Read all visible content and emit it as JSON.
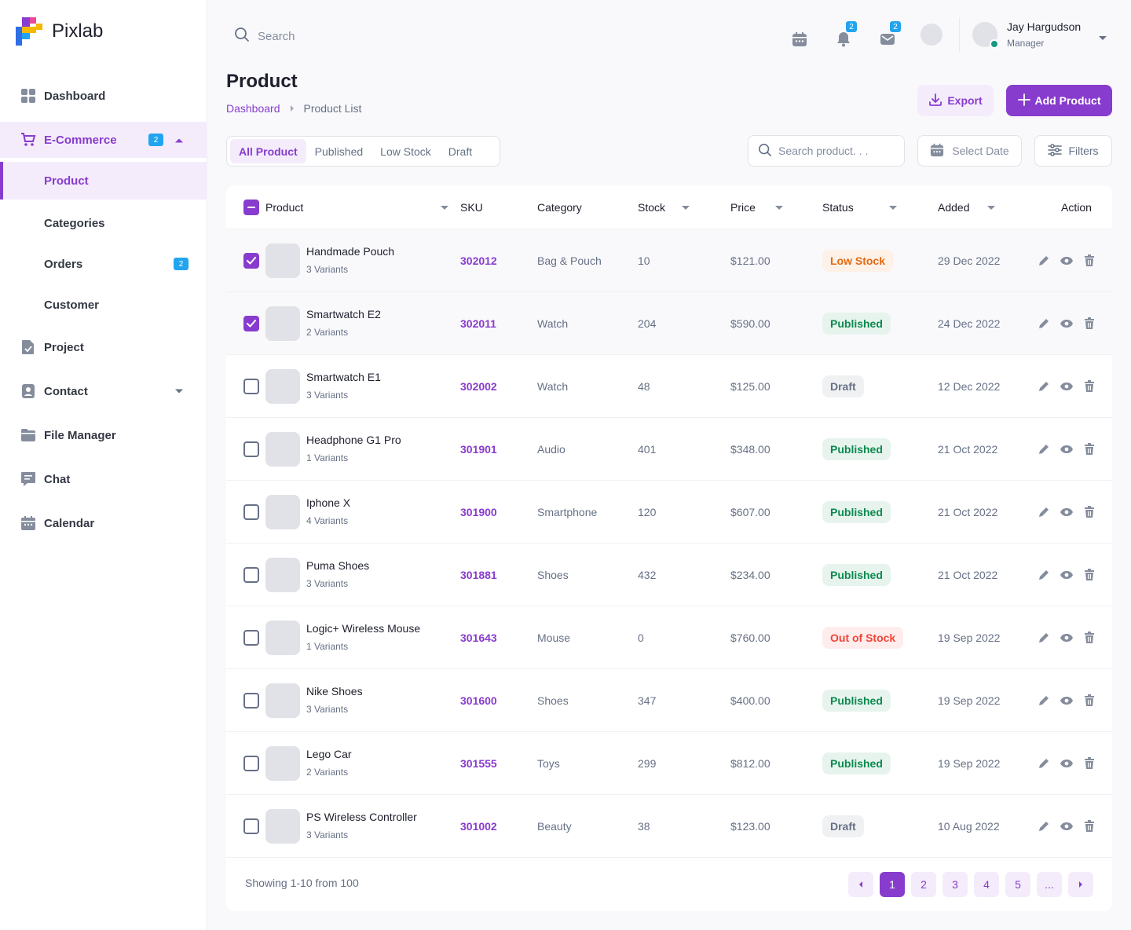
{
  "brand": {
    "name": "Pixlab"
  },
  "sidebar": {
    "items": [
      {
        "label": "Dashboard"
      },
      {
        "label": "E-Commerce",
        "badge": "2"
      },
      {
        "label": "Project"
      },
      {
        "label": "Contact"
      },
      {
        "label": "File Manager"
      },
      {
        "label": "Chat"
      },
      {
        "label": "Calendar"
      }
    ],
    "sub_items": [
      {
        "label": "Product"
      },
      {
        "label": "Categories"
      },
      {
        "label": "Orders",
        "badge": "2"
      },
      {
        "label": "Customer"
      }
    ]
  },
  "topbar": {
    "search_placeholder": "Search",
    "notification_badge": "2",
    "mail_badge": "2",
    "user": {
      "name": "Jay Hargudson",
      "role": "Manager"
    }
  },
  "page": {
    "title": "Product",
    "breadcrumb": [
      "Dashboard",
      "Product List"
    ],
    "export_label": "Export",
    "add_label": "Add Product"
  },
  "filters": {
    "tabs": [
      "All Product",
      "Published",
      "Low Stock",
      "Draft"
    ],
    "search_placeholder": "Search product. . .",
    "date_label": "Select Date",
    "filters_label": "Filters"
  },
  "table": {
    "headers": [
      "Product",
      "SKU",
      "Category",
      "Stock",
      "Price",
      "Status",
      "Added",
      "Action"
    ],
    "rows": [
      {
        "name": "Handmade Pouch",
        "variants": "3 Variants",
        "sku": "302012",
        "category": "Bag & Pouch",
        "stock": "10",
        "price": "$121.00",
        "status": "Low Stock",
        "added": "29 Dec 2022",
        "checked": true
      },
      {
        "name": "Smartwatch E2",
        "variants": "2 Variants",
        "sku": "302011",
        "category": "Watch",
        "stock": "204",
        "price": "$590.00",
        "status": "Published",
        "added": "24 Dec 2022",
        "checked": true
      },
      {
        "name": "Smartwatch E1",
        "variants": "3 Variants",
        "sku": "302002",
        "category": "Watch",
        "stock": "48",
        "price": "$125.00",
        "status": "Draft",
        "added": "12 Dec 2022",
        "checked": false
      },
      {
        "name": "Headphone G1 Pro",
        "variants": "1 Variants",
        "sku": "301901",
        "category": "Audio",
        "stock": "401",
        "price": "$348.00",
        "status": "Published",
        "added": "21 Oct 2022",
        "checked": false
      },
      {
        "name": "Iphone X",
        "variants": "4 Variants",
        "sku": "301900",
        "category": "Smartphone",
        "stock": "120",
        "price": "$607.00",
        "status": "Published",
        "added": "21 Oct 2022",
        "checked": false
      },
      {
        "name": "Puma Shoes",
        "variants": "3 Variants",
        "sku": "301881",
        "category": "Shoes",
        "stock": "432",
        "price": "$234.00",
        "status": "Published",
        "added": "21 Oct 2022",
        "checked": false
      },
      {
        "name": "Logic+ Wireless Mouse",
        "variants": "1 Variants",
        "sku": "301643",
        "category": "Mouse",
        "stock": "0",
        "price": "$760.00",
        "status": "Out of Stock",
        "added": "19 Sep 2022",
        "checked": false
      },
      {
        "name": "Nike Shoes",
        "variants": "3 Variants",
        "sku": "301600",
        "category": "Shoes",
        "stock": "347",
        "price": "$400.00",
        "status": "Published",
        "added": "19 Sep 2022",
        "checked": false
      },
      {
        "name": "Lego Car",
        "variants": "2 Variants",
        "sku": "301555",
        "category": "Toys",
        "stock": "299",
        "price": "$812.00",
        "status": "Published",
        "added": "19 Sep 2022",
        "checked": false
      },
      {
        "name": "PS Wireless Controller",
        "variants": "3 Variants",
        "sku": "301002",
        "category": "Beauty",
        "stock": "38",
        "price": "$123.00",
        "status": "Draft",
        "added": "10 Aug 2022",
        "checked": false
      }
    ]
  },
  "status_colors": {
    "Low Stock": {
      "bg": "#fdf1e8",
      "fg": "#e46a11"
    },
    "Published": {
      "bg": "#e7f4ee",
      "fg": "#0d894f"
    },
    "Draft": {
      "bg": "#f0f1f3",
      "fg": "#667085"
    },
    "Out of Stock": {
      "bg": "#feedec",
      "fg": "#f04438"
    }
  },
  "pagination": {
    "summary": "Showing 1-10 from 100",
    "pages": [
      "1",
      "2",
      "3",
      "4",
      "5",
      "..."
    ],
    "current": "1"
  },
  "colors": {
    "accent": "#883cce",
    "badge": "#22a4ef"
  }
}
